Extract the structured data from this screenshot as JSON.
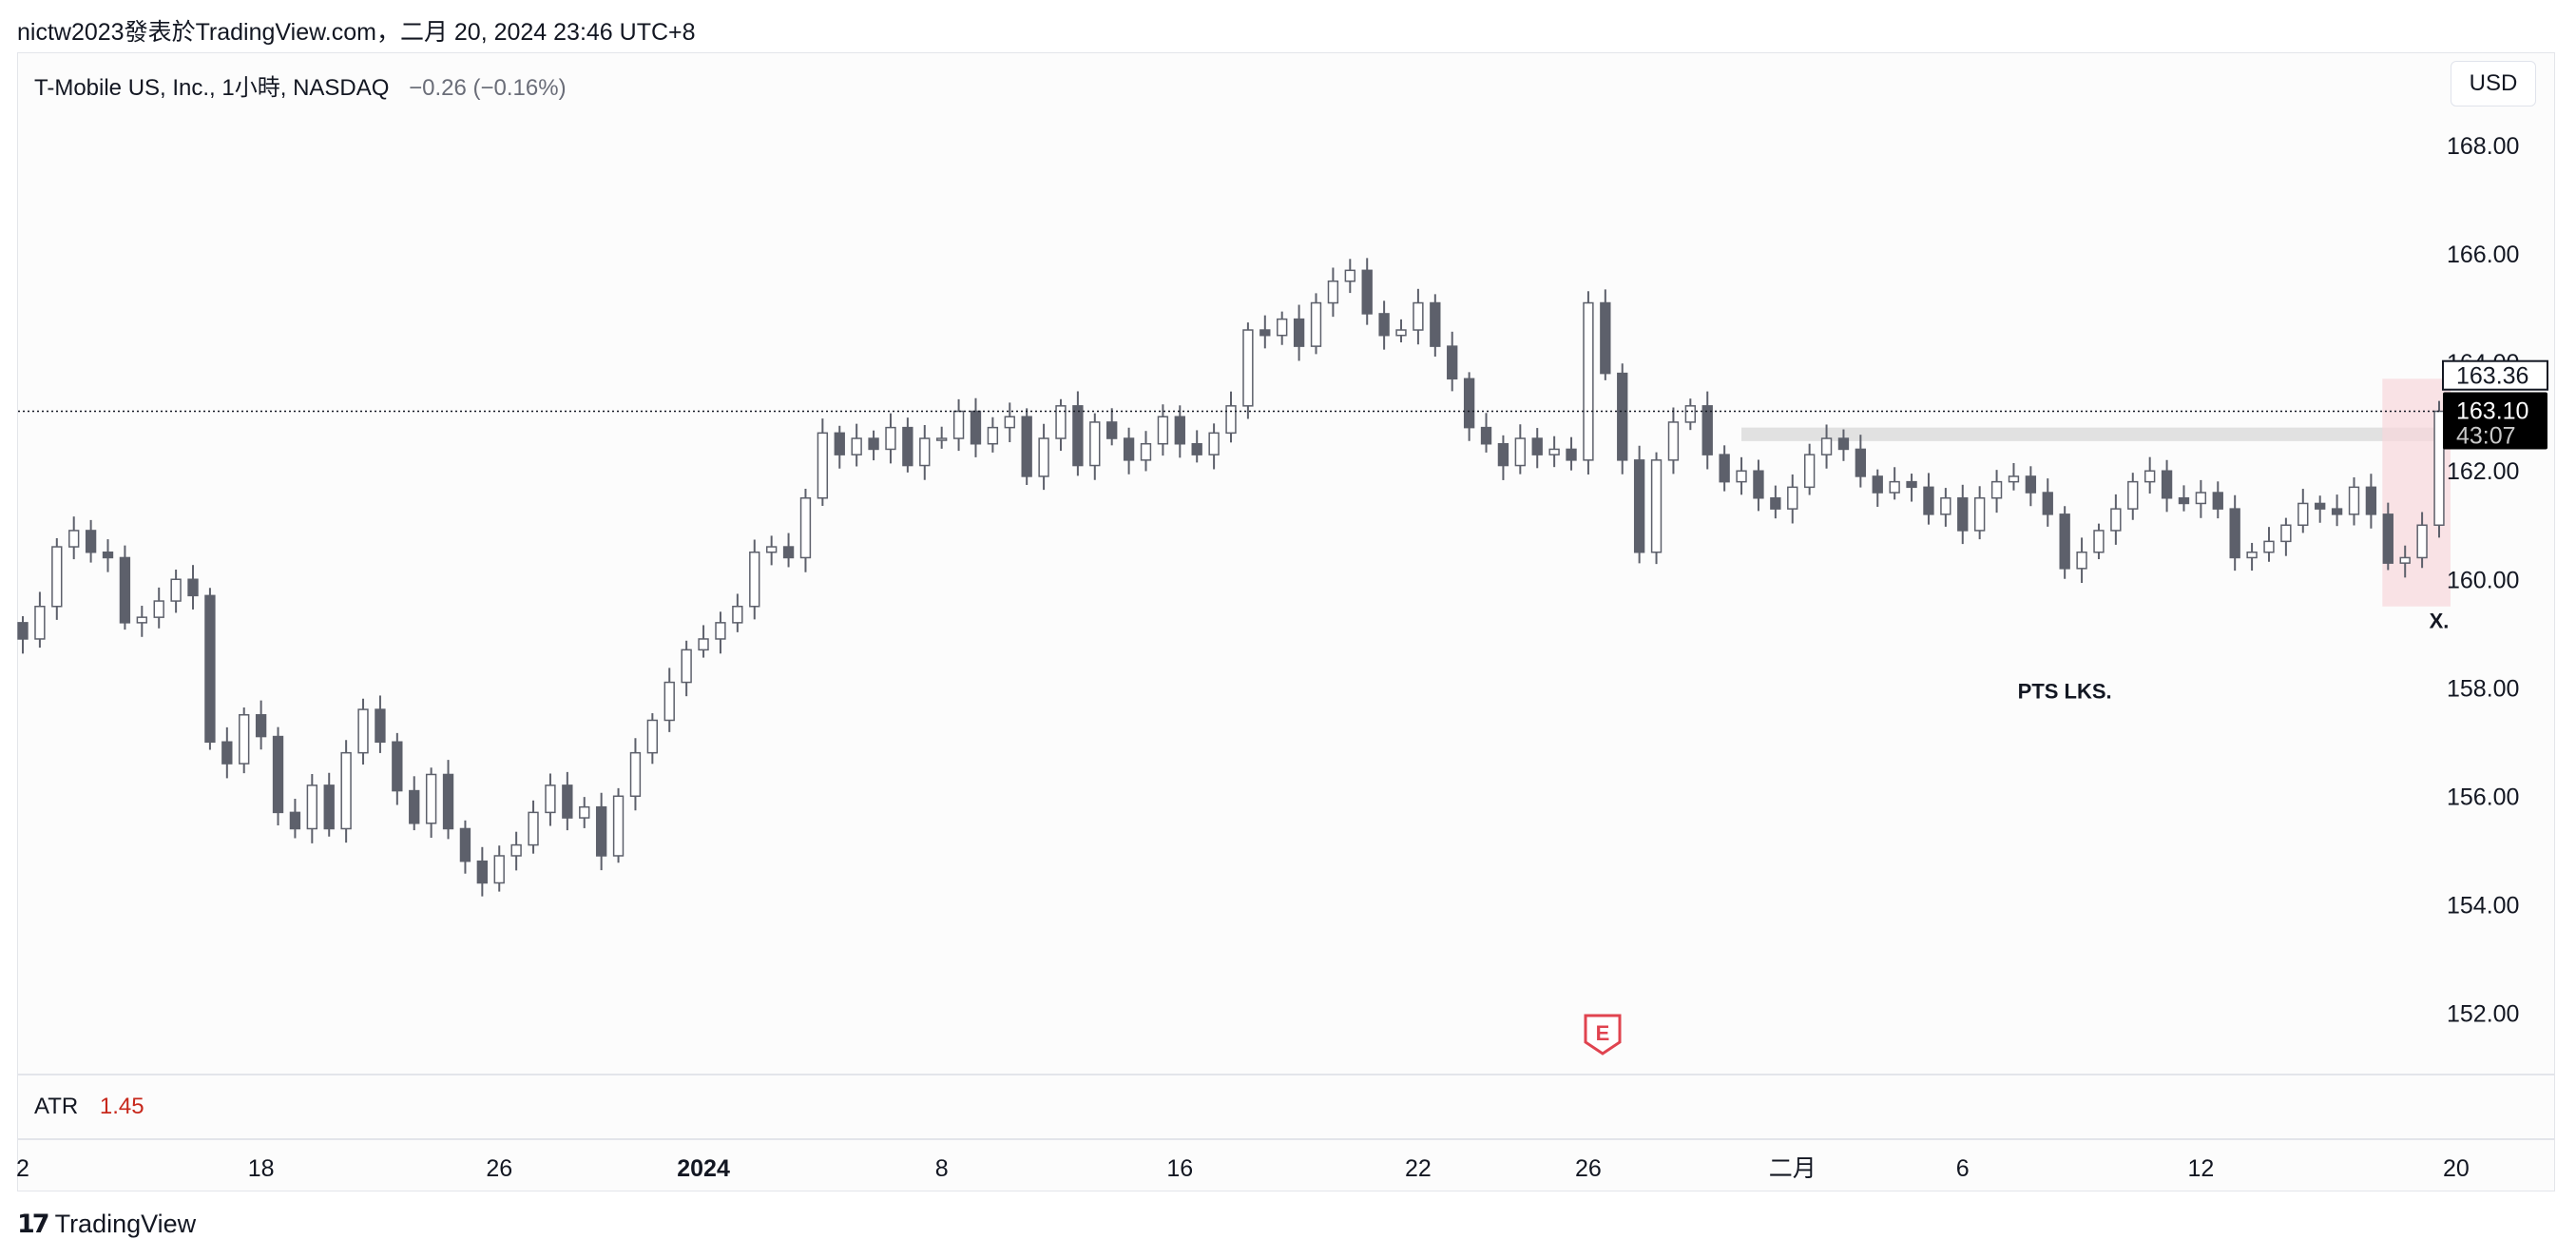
{
  "header": {
    "title": "nictw2023發表於TradingView.com，二月 20, 2024 23:46 UTC+8"
  },
  "legend": {
    "symbol": "T-Mobile US, Inc., 1小時, NASDAQ",
    "change": "−0.26 (−0.16%)"
  },
  "currency_button": "USD",
  "indicator": {
    "name": "ATR",
    "value": "1.45"
  },
  "footer": {
    "brand": "TradingView",
    "logo_glyph": "𝟭𝟳"
  },
  "earnings_marker": "E",
  "colors": {
    "candle": "#5d606b",
    "atr_value": "#c7281c",
    "zone": "#d9d9d9",
    "highlight": "#f8d7dc"
  },
  "chart_data": {
    "type": "candlestick",
    "title": "",
    "ylim": [
      150.9,
      169.6
    ],
    "y_ticks": [
      "168.00",
      "166.00",
      "164.00",
      "162.00",
      "160.00",
      "158.00",
      "156.00",
      "154.00",
      "152.00"
    ],
    "y_tick_values": [
      168,
      166,
      164,
      162,
      160,
      158,
      156,
      154,
      152
    ],
    "x_ticks": [
      {
        "label": "2",
        "idx": 0
      },
      {
        "label": "18",
        "idx": 14
      },
      {
        "label": "26",
        "idx": 28
      },
      {
        "label": "2024",
        "idx": 40
      },
      {
        "label": "8",
        "idx": 54
      },
      {
        "label": "16",
        "idx": 68
      },
      {
        "label": "22",
        "idx": 82
      },
      {
        "label": "26",
        "idx": 92
      },
      {
        "label": "二月",
        "idx": 104
      },
      {
        "label": "6",
        "idx": 114
      },
      {
        "label": "12",
        "idx": 128
      },
      {
        "label": "20",
        "idx": 143
      }
    ],
    "current_price": {
      "price": "163.10",
      "countdown": "43:07",
      "value": 163.1
    },
    "prev_close_label": {
      "price": "163.36",
      "value": 163.36
    },
    "resistance_zone": {
      "low": 162.55,
      "high": 162.8,
      "from_idx": 101,
      "to_idx": 142
    },
    "annotations": [
      {
        "text": "PTS LKS.",
        "x_idx": 120,
        "y": 157.8
      },
      {
        "text": "X.",
        "x_idx": 142,
        "y": 159.1
      }
    ],
    "close": [
      158.9,
      159.5,
      160.6,
      160.9,
      160.5,
      160.4,
      159.2,
      159.3,
      159.6,
      160.0,
      159.7,
      157.0,
      156.6,
      157.5,
      157.1,
      155.7,
      155.4,
      156.2,
      155.4,
      156.8,
      157.6,
      157.0,
      156.1,
      155.5,
      156.4,
      155.4,
      154.8,
      154.4,
      154.9,
      155.1,
      155.7,
      156.2,
      155.6,
      155.8,
      154.9,
      156.0,
      156.8,
      157.4,
      158.1,
      158.7,
      158.9,
      159.2,
      159.5,
      160.5,
      160.6,
      160.4,
      161.5,
      162.7,
      162.3,
      162.6,
      162.4,
      162.8,
      162.1,
      162.6,
      162.6,
      163.1,
      162.5,
      162.8,
      163.0,
      161.9,
      162.6,
      163.2,
      162.1,
      162.9,
      162.6,
      162.2,
      162.5,
      163.0,
      162.5,
      162.3,
      162.7,
      163.2,
      164.6,
      164.5,
      164.8,
      164.3,
      165.1,
      165.5,
      165.7,
      164.9,
      164.5,
      164.6,
      165.1,
      164.3,
      163.7,
      162.8,
      162.5,
      162.1,
      162.6,
      162.3,
      162.4,
      162.2,
      165.1,
      163.8,
      162.2,
      160.5,
      162.2,
      162.9,
      163.2,
      162.3,
      161.8,
      162.0,
      161.5,
      161.3,
      161.7,
      162.3,
      162.6,
      162.4,
      161.9,
      161.6,
      161.8,
      161.7,
      161.2,
      161.5,
      160.9,
      161.5,
      161.8,
      161.9,
      161.6,
      161.2,
      160.2,
      160.5,
      160.9,
      161.3,
      161.8,
      162.0,
      161.5,
      161.4,
      161.6,
      161.3,
      160.4,
      160.5,
      160.7,
      161.0,
      161.4,
      161.3,
      161.2,
      161.7,
      161.2,
      160.3,
      160.4,
      161.0,
      163.1
    ]
  }
}
